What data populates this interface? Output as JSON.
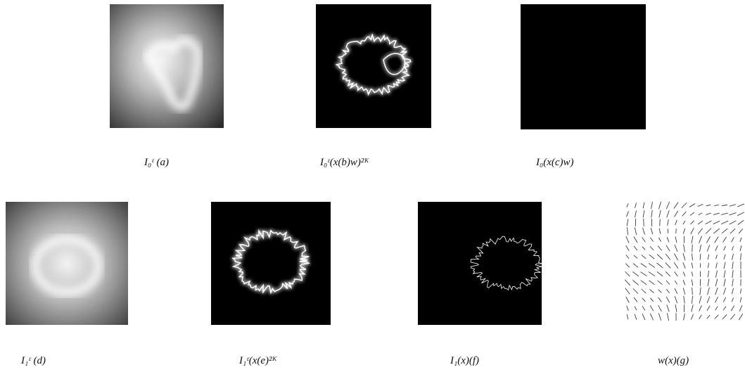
{
  "figure": {
    "panels": [
      {
        "caption": "I₀ᵋ   (a)"
      },
      {
        "caption": "I₀ᵋ(x(b)w)²ᴷ"
      },
      {
        "caption": "I₀(x(c)w)"
      },
      {
        "caption": "I₁ᵋ   (d)"
      },
      {
        "caption": "I₁ᵋ(x(e)²ᴷ"
      },
      {
        "caption": "I₁(x)(f)"
      },
      {
        "caption": "w(x)(g)"
      }
    ]
  }
}
